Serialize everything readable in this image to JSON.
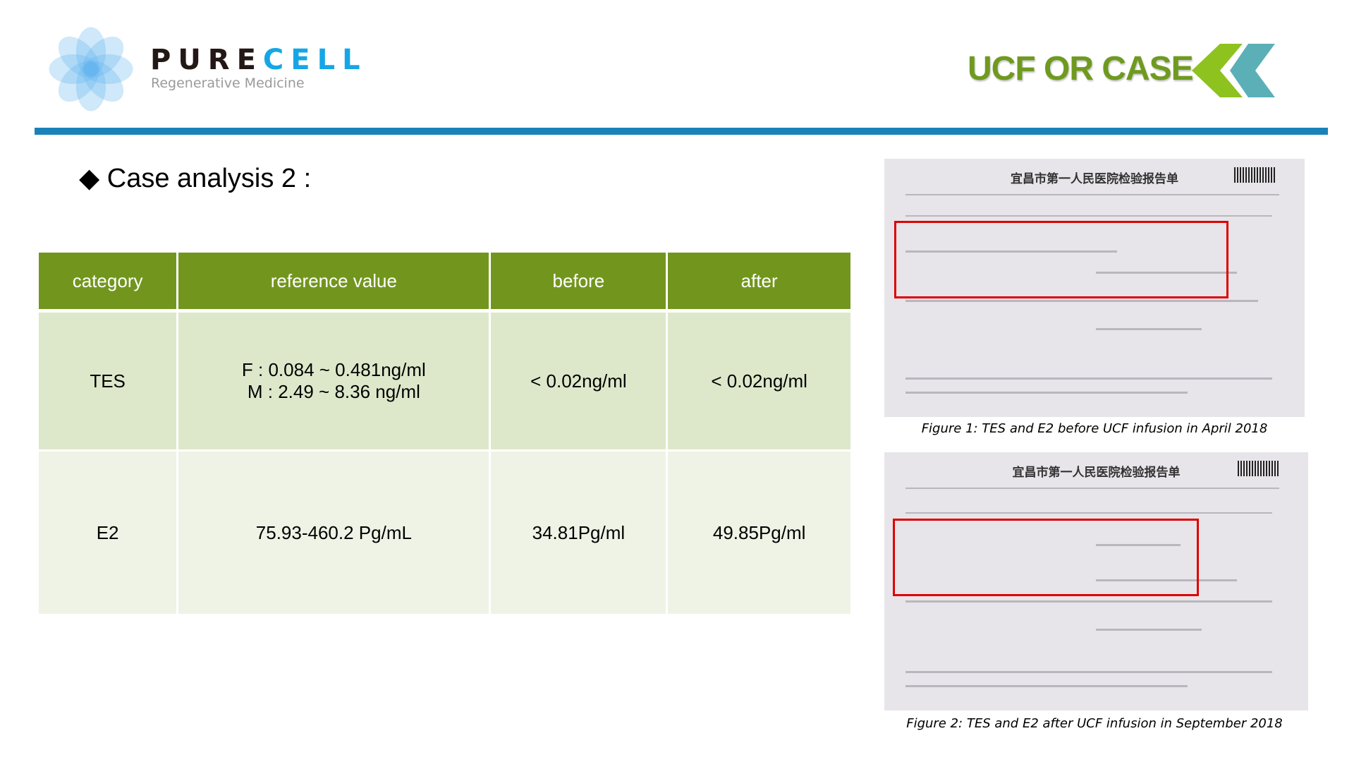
{
  "header": {
    "brand_part1": "PURE",
    "brand_part2": "CELL",
    "tagline": "Regenerative Medicine",
    "section_title": "UCF OR CASE",
    "colors": {
      "brand_dark": "#231815",
      "brand_blue": "#16a6e6",
      "section_green": "#6f9a1f",
      "divider": "#1a82b8",
      "chevron_green": "#8dc21f",
      "chevron_teal": "#5bb0b8"
    }
  },
  "case_title": "◆ Case analysis 2 :",
  "table": {
    "columns": [
      "category",
      "reference value",
      "before",
      "after"
    ],
    "rows": [
      {
        "category": "TES",
        "reference": [
          "F : 0.084 ~ 0.481ng/ml",
          "M : 2.49 ~ 8.36 ng/ml"
        ],
        "before": "< 0.02ng/ml",
        "after": "< 0.02ng/ml"
      },
      {
        "category": "E2",
        "reference": [
          "75.93-460.2 Pg/mL"
        ],
        "before": "34.81Pg/ml",
        "after": "49.85Pg/ml"
      }
    ],
    "colors": {
      "header": "#72961d",
      "row1": "#dde8cb",
      "row2": "#eef3e6"
    }
  },
  "figures": [
    {
      "report_title": "宜昌市第一人民医院检验报告单",
      "caption": "Figure 1: TES and E2 before UCF infusion in April 2018"
    },
    {
      "report_title": "宜昌市第一人民医院检验报告单",
      "caption": "Figure 2: TES and E2 after UCF infusion in September 2018"
    }
  ]
}
